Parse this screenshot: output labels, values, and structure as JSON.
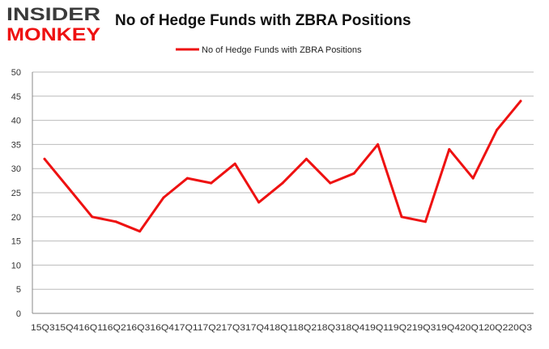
{
  "logo": {
    "line1": "INSIDER",
    "line2": "MONKEY"
  },
  "chart_data": {
    "type": "line",
    "title": "No of Hedge Funds with ZBRA Positions",
    "xlabel": "",
    "ylabel": "",
    "categories": [
      "2015Q3",
      "2015Q4",
      "2016Q1",
      "2016Q2",
      "2016Q3",
      "2016Q4",
      "2017Q1",
      "2017Q2",
      "2017Q3",
      "2017Q4",
      "2018Q1",
      "2018Q2",
      "2018Q3",
      "2018Q4",
      "2019Q1",
      "2019Q2",
      "2019Q3",
      "2019Q4",
      "2020Q1",
      "2020Q2",
      "2020Q3"
    ],
    "x_tick_text": "15Q315Q416Q116Q216Q316Q417Q117Q217Q317Q418Q118Q218Q318Q419Q119Q219Q319Q420Q120Q220Q3",
    "series": [
      {
        "name": "No of Hedge Funds with ZBRA Positions",
        "values": [
          32,
          26,
          20,
          19,
          17,
          24,
          28,
          27,
          31,
          23,
          27,
          32,
          27,
          29,
          35,
          20,
          19,
          34,
          28,
          38,
          44
        ],
        "color": "#ee1111"
      }
    ],
    "ylim": [
      0,
      50
    ],
    "yticks": [
      0,
      5,
      10,
      15,
      20,
      25,
      30,
      35,
      40,
      45,
      50
    ],
    "grid": true,
    "legend": "top-center"
  },
  "colors": {
    "accent": "#ee1111",
    "grid": "#bbbbbb",
    "axis": "#888888",
    "logo_dark": "#3a3a3a"
  }
}
